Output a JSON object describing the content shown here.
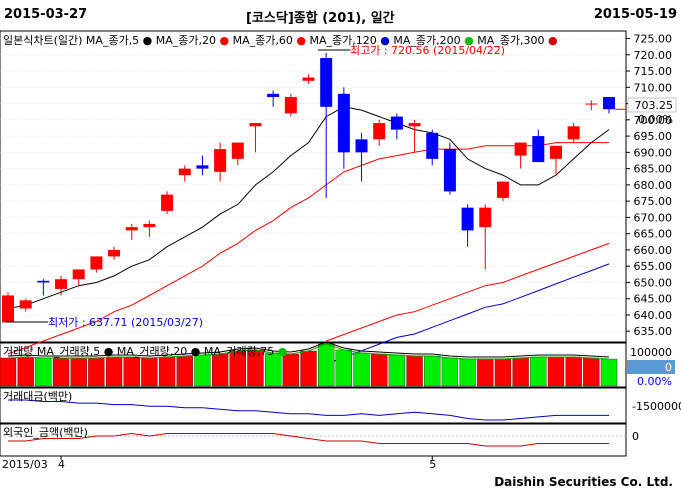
{
  "header": {
    "start_date": "2015-03-27",
    "title": "[코스닥]종합 (201), 일간",
    "end_date": "2015-05-19"
  },
  "footer": {
    "brand": "Daishin Securities Co. Ltd."
  },
  "colors": {
    "up": "#ff0000",
    "down": "#0000ff",
    "ma5": "#000000",
    "ma20": "#ff0000",
    "ma60": "#ff0000",
    "ma120": "#0000cc",
    "ma200": "#00c000",
    "ma300": "#cc0000",
    "vol_up": "#ff0000",
    "vol_down": "#00ee00",
    "badge_bg": "#5b9bd5"
  },
  "chart_data": [
    {
      "type": "candlestick",
      "legend": [
        {
          "label": "일본식차트(일간)",
          "color": "#000000"
        },
        {
          "label": "MA_종가,5",
          "color": "#000000"
        },
        {
          "label": "MA_종가,20",
          "color": "#ff0000"
        },
        {
          "label": "MA_종가,60",
          "color": "#ff0000"
        },
        {
          "label": "MA_종가,120",
          "color": "#0000cc"
        },
        {
          "label": "MA_종가,200",
          "color": "#00c000"
        },
        {
          "label": "MA_종가,300",
          "color": "#cc0000"
        }
      ],
      "ylim": [
        632,
        727
      ],
      "yticks": [
        635,
        640,
        645,
        650,
        655,
        660,
        665,
        670,
        675,
        680,
        685,
        690,
        695,
        700,
        705,
        710,
        715,
        720,
        725
      ],
      "current_price": "703.25",
      "change_pct": "0.00%",
      "annotation_high": "최고가 : 720.56 (2015/04/22)",
      "annotation_low": "최저가 : 637.71 (2015/03/27)",
      "candles": [
        {
          "o": 637.7,
          "h": 647,
          "l": 637.7,
          "c": 646
        },
        {
          "o": 642,
          "h": 645,
          "l": 641,
          "c": 644.5
        },
        {
          "o": 650.5,
          "h": 651,
          "l": 646,
          "c": 650
        },
        {
          "o": 648,
          "h": 652,
          "l": 646,
          "c": 651
        },
        {
          "o": 651,
          "h": 654,
          "l": 649,
          "c": 654
        },
        {
          "o": 654,
          "h": 658,
          "l": 653,
          "c": 658
        },
        {
          "o": 658,
          "h": 661,
          "l": 657,
          "c": 660
        },
        {
          "o": 666,
          "h": 668,
          "l": 663,
          "c": 667
        },
        {
          "o": 667,
          "h": 669,
          "l": 664,
          "c": 668
        },
        {
          "o": 672,
          "h": 678,
          "l": 671,
          "c": 677
        },
        {
          "o": 683,
          "h": 686,
          "l": 681,
          "c": 685
        },
        {
          "o": 686,
          "h": 689,
          "l": 683,
          "c": 685
        },
        {
          "o": 684,
          "h": 693,
          "l": 681,
          "c": 691
        },
        {
          "o": 688,
          "h": 693,
          "l": 686,
          "c": 693
        },
        {
          "o": 698,
          "h": 699,
          "l": 690,
          "c": 699
        },
        {
          "o": 708,
          "h": 709,
          "l": 704,
          "c": 707
        },
        {
          "o": 702,
          "h": 708,
          "l": 701,
          "c": 707
        },
        {
          "o": 712,
          "h": 714,
          "l": 711,
          "c": 713
        },
        {
          "o": 719,
          "h": 720.56,
          "l": 676,
          "c": 704
        },
        {
          "o": 708,
          "h": 710,
          "l": 685,
          "c": 690
        },
        {
          "o": 694,
          "h": 696,
          "l": 681,
          "c": 690
        },
        {
          "o": 694,
          "h": 700,
          "l": 692,
          "c": 699
        },
        {
          "o": 701,
          "h": 702,
          "l": 694,
          "c": 697
        },
        {
          "o": 698,
          "h": 700,
          "l": 690,
          "c": 699
        },
        {
          "o": 696,
          "h": 697,
          "l": 686,
          "c": 688
        },
        {
          "o": 691,
          "h": 693,
          "l": 677,
          "c": 678
        },
        {
          "o": 673,
          "h": 674,
          "l": 661,
          "c": 666
        },
        {
          "o": 667,
          "h": 674,
          "l": 654,
          "c": 673
        },
        {
          "o": 676,
          "h": 681,
          "l": 675,
          "c": 681
        },
        {
          "o": 689,
          "h": 693,
          "l": 685,
          "c": 693
        },
        {
          "o": 695,
          "h": 697,
          "l": 687,
          "c": 687
        },
        {
          "o": 688,
          "h": 692,
          "l": 683,
          "c": 692
        },
        {
          "o": 694,
          "h": 699,
          "l": 693,
          "c": 698
        },
        {
          "o": 705,
          "h": 706,
          "l": 703,
          "c": 705
        },
        {
          "o": 707,
          "h": 707,
          "l": 702,
          "c": 703.25
        }
      ],
      "ma5": [
        642,
        643,
        645,
        647,
        649,
        650,
        652,
        655,
        657,
        661,
        664,
        667,
        671,
        674,
        680,
        684,
        689,
        693,
        701,
        704,
        703,
        701,
        699,
        697,
        696,
        694,
        688,
        685,
        683,
        680,
        680,
        683,
        688,
        693,
        697
      ],
      "ma20": [
        628,
        630,
        632,
        634,
        636,
        638,
        641,
        643,
        646,
        649,
        652,
        655,
        659,
        662,
        666,
        669,
        673,
        676,
        680,
        684,
        686,
        688,
        689,
        690,
        691,
        691,
        691,
        692,
        692,
        692,
        692,
        693,
        693,
        693,
        693
      ],
      "ma60": [
        null,
        null,
        null,
        null,
        null,
        null,
        null,
        null,
        null,
        null,
        null,
        null,
        null,
        null,
        null,
        null,
        null,
        null,
        632,
        634,
        636,
        638,
        640,
        641,
        643,
        645,
        647,
        649,
        650,
        652,
        654,
        656,
        658,
        660,
        662
      ]
    },
    {
      "type": "bar",
      "title": "거래량",
      "legend": [
        {
          "label": "거래량",
          "color": "#000000"
        },
        {
          "label": "MA_거래량,5",
          "color": "#000000"
        },
        {
          "label": "MA_거래량,20",
          "color": "#000000"
        },
        {
          "label": "MA_거래량,75",
          "color": "#00c000"
        }
      ],
      "yticks": [
        100000,
        0
      ],
      "badge_value": "0",
      "badge_pct": "0.00%",
      "values": [
        28,
        29,
        28,
        28,
        28,
        28,
        29,
        29,
        28,
        29,
        30,
        31,
        32,
        35,
        36,
        33,
        32,
        35,
        42,
        36,
        33,
        32,
        31,
        30,
        30,
        28,
        27,
        27,
        27,
        28,
        29,
        29,
        29,
        28,
        27
      ]
    },
    {
      "type": "line",
      "title": "거래대금(백만)",
      "yticks": [
        "-1500000"
      ],
      "values": [
        10,
        10,
        11,
        11,
        12,
        12,
        13,
        13,
        14,
        14,
        15,
        15,
        16,
        17,
        17,
        18,
        19,
        19,
        20,
        20,
        19,
        20,
        19,
        18,
        19,
        20,
        22,
        23,
        23,
        22,
        21,
        20,
        20,
        20,
        20
      ]
    },
    {
      "type": "line",
      "title": "외국인_금액(백만)",
      "yticks": [
        "0"
      ],
      "values": [
        -2,
        -2,
        -1,
        -1,
        -1,
        0,
        0,
        1,
        0,
        1,
        1,
        1,
        1,
        1,
        1,
        1,
        0,
        -1,
        -2,
        -2,
        -2,
        -3,
        -3,
        -3,
        -3,
        -3,
        -3,
        -4,
        -4,
        -4,
        -3,
        -3,
        -3,
        -3,
        -3
      ]
    }
  ],
  "x_axis": {
    "labels": [
      "2015/03",
      "4",
      "5"
    ],
    "label_index": [
      0,
      3,
      24
    ]
  }
}
